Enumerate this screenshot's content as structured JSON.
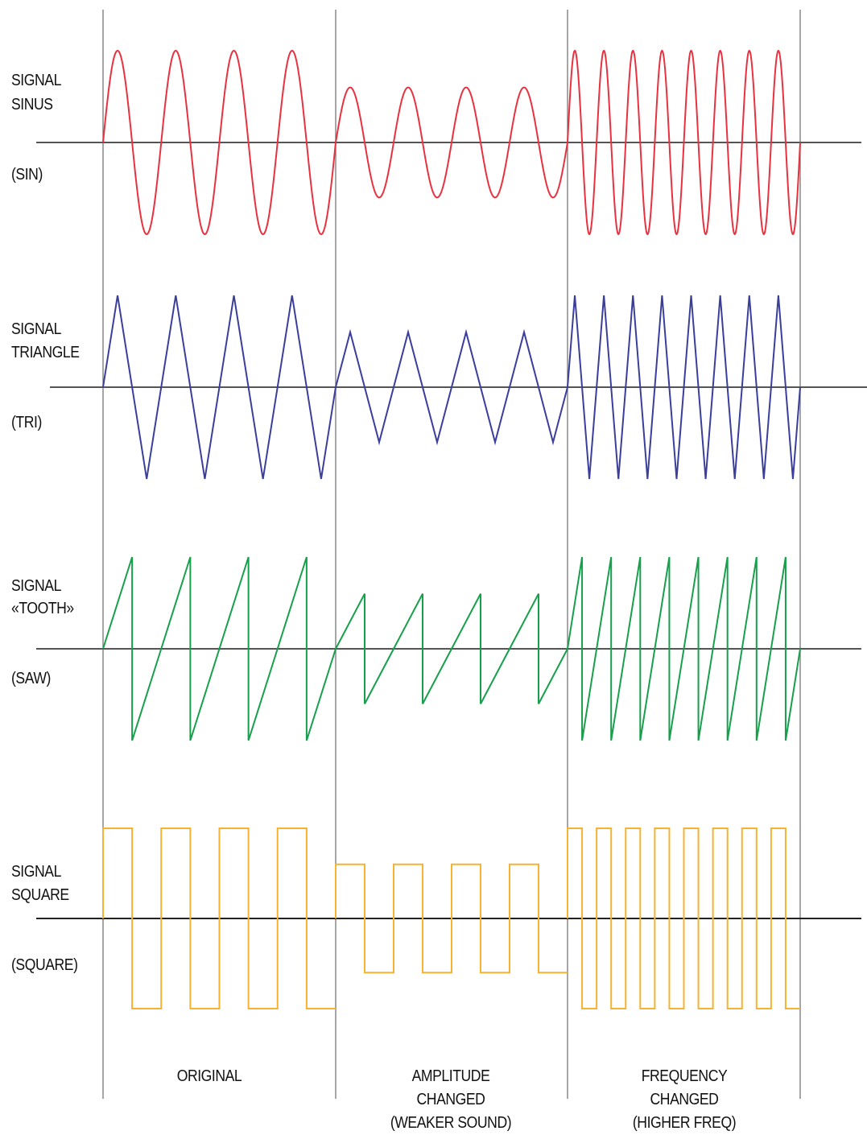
{
  "colors": {
    "sine": "#e8323f",
    "triangle": "#3a3e9c",
    "saw": "#17a04c",
    "square": "#f5b331",
    "axis": "#555555",
    "divider": "#777777"
  },
  "signals": [
    {
      "id": "sin",
      "title_1": "SIGNAL",
      "title_2": "SINUS",
      "tag": "(SIN)"
    },
    {
      "id": "tri",
      "title_1": "SIGNAL",
      "title_2": "TRIANGLE",
      "tag": "(TRI)"
    },
    {
      "id": "saw",
      "title_1": "SIGNAL",
      "title_2": "«TOOTH»",
      "tag": "(SAW)"
    },
    {
      "id": "square",
      "title_1": "SIGNAL",
      "title_2": "SQUARE",
      "tag": "(SQUARE)"
    }
  ],
  "columns": [
    {
      "id": "original",
      "lines": [
        "ORIGINAL"
      ],
      "cycles": 4,
      "amplitude": 1.0
    },
    {
      "id": "amplitude",
      "lines": [
        "AMPLITUDE",
        "CHANGED",
        "(WEAKER SOUND)"
      ],
      "cycles": 4,
      "amplitude": 0.6
    },
    {
      "id": "frequency",
      "lines": [
        "FREQUENCY",
        "CHANGED",
        "(HIGHER FREQ)"
      ],
      "cycles": 8,
      "amplitude": 1.0
    }
  ]
}
